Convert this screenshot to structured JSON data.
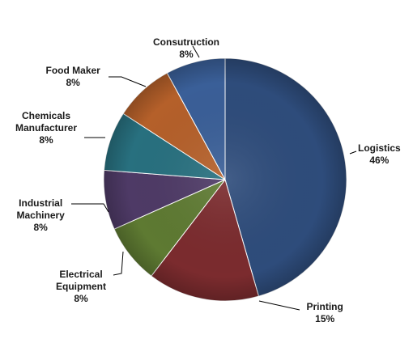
{
  "chart_data": {
    "type": "pie",
    "slices": [
      {
        "label": "Logistics",
        "value": 46,
        "value_label": "46%",
        "color": "#2E4C7B"
      },
      {
        "label": "Printing",
        "value": 15,
        "value_label": "15%",
        "color": "#7B2B2E"
      },
      {
        "label": "Electrical Equipment",
        "label_lines": [
          "Electrical",
          "Equipment"
        ],
        "value": 8,
        "value_label": "8%",
        "color": "#5E7A32"
      },
      {
        "label": "Industrial Machinery",
        "label_lines": [
          "Industrial",
          "Machinery"
        ],
        "value": 8,
        "value_label": "8%",
        "color": "#4E3A66"
      },
      {
        "label": "Chemicals Manufacturer",
        "label_lines": [
          "Chemicals",
          "Manufacturer"
        ],
        "value": 8,
        "value_label": "8%",
        "color": "#28707F"
      },
      {
        "label": "Food Maker",
        "value": 8,
        "value_label": "8%",
        "color": "#B5602A"
      },
      {
        "label": "Consutruction",
        "value": 8,
        "value_label": "8%",
        "color": "#3A5F98"
      }
    ],
    "start": "12 o'clock",
    "direction": "clockwise",
    "legend": "none",
    "data_labels": "outside with leader lines"
  }
}
